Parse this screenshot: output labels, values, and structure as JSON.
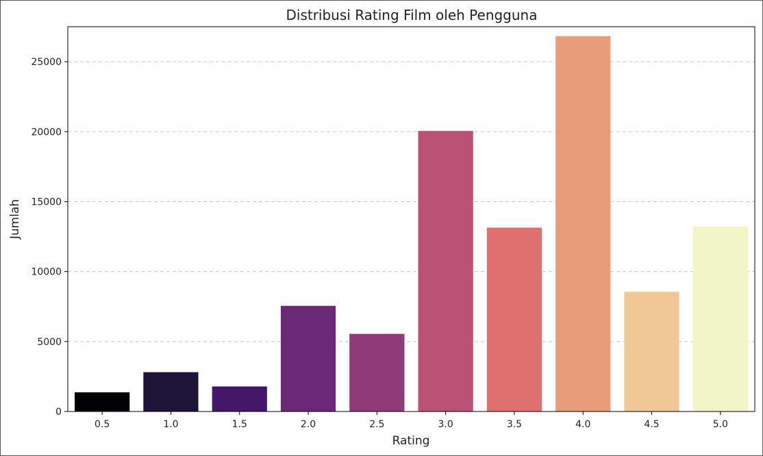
{
  "chart_data": {
    "type": "bar",
    "title": "Distribusi Rating Film oleh Pengguna",
    "xlabel": "Rating",
    "ylabel": "Jumlah",
    "categories": [
      "0.5",
      "1.0",
      "1.5",
      "2.0",
      "2.5",
      "3.0",
      "3.5",
      "4.0",
      "4.5",
      "5.0"
    ],
    "values": [
      1370,
      2810,
      1790,
      7550,
      5550,
      20050,
      13140,
      26820,
      8550,
      13210
    ],
    "colors": [
      "#000004",
      "#1d1437",
      "#45176a",
      "#6b2877",
      "#8e3b77",
      "#b95274",
      "#e07070",
      "#e99c7a",
      "#f0c896",
      "#f2f5c7"
    ],
    "ylim": [
      0,
      27500
    ],
    "yticks": [
      "0",
      "5000",
      "10000",
      "15000",
      "20000",
      "25000"
    ],
    "grid": "y-dashed",
    "legend": "none"
  }
}
